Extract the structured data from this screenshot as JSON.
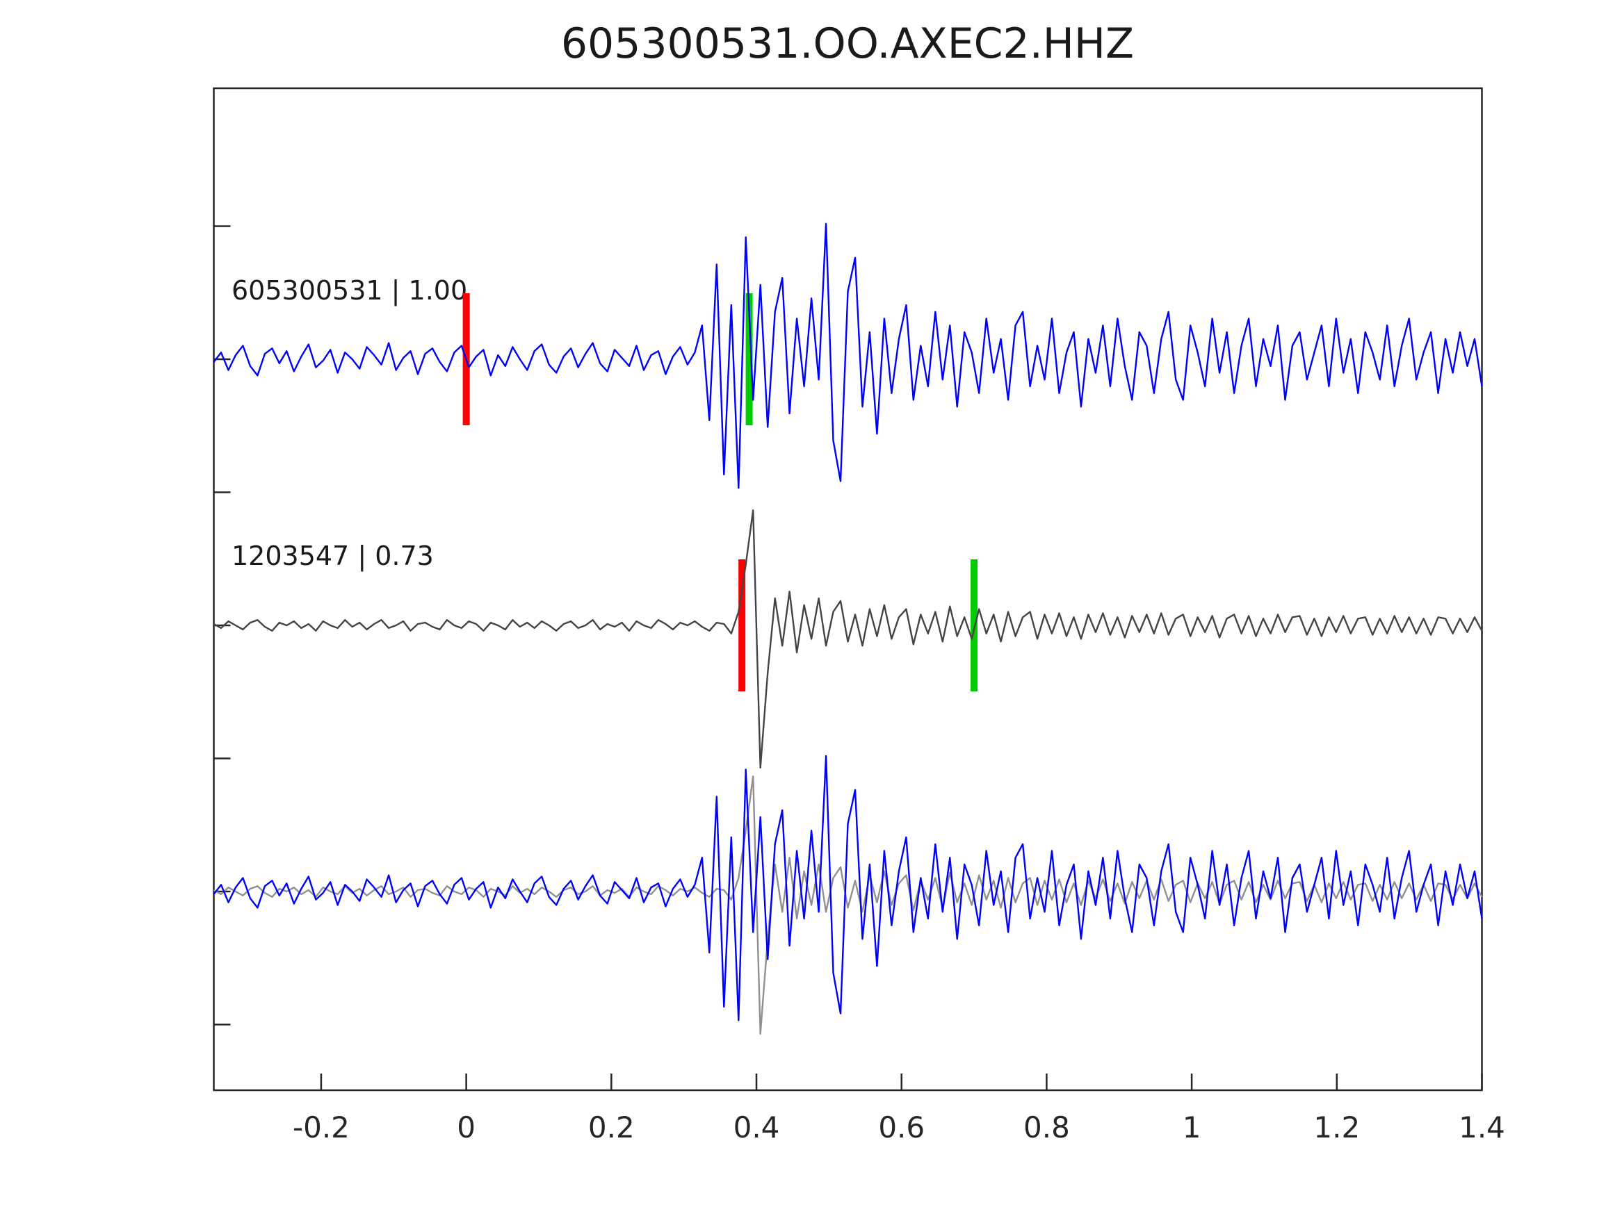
{
  "chart_data": {
    "type": "line",
    "title": "605300531.OO.AXEC2.HHZ",
    "xlabel": "",
    "ylabel": "",
    "legend": "none",
    "grid": false,
    "x_range": [
      -0.348,
      1.4
    ],
    "x_ticks": [
      -0.2,
      0,
      0.2,
      0.4,
      0.6,
      0.8,
      1,
      1.2,
      1.4
    ],
    "x_tick_labels": [
      "-0.2",
      "0",
      "0.2",
      "0.4",
      "0.6",
      "0.8",
      "1",
      "1.2",
      "1.4"
    ],
    "colors": {
      "template": "#0000ff",
      "detection": "#444444",
      "overlay_detection": "#909090",
      "pick_red": "#ff0000",
      "pick_green": "#00cc00",
      "axis": "#262626"
    },
    "rows": [
      {
        "name": "template-trace",
        "label": "605300531 | 1.00",
        "series": [
          "template"
        ],
        "color_keys": [
          "template"
        ],
        "markers": [
          {
            "x": 0.0,
            "color_key": "pick_red"
          },
          {
            "x": 0.39,
            "color_key": "pick_green"
          }
        ]
      },
      {
        "name": "detection-trace",
        "label": "1203547 | 0.73",
        "series": [
          "detection"
        ],
        "color_keys": [
          "detection"
        ],
        "markers": [
          {
            "x": 0.38,
            "color_key": "pick_red"
          },
          {
            "x": 0.7,
            "color_key": "pick_green"
          }
        ]
      },
      {
        "name": "overlay-trace",
        "label": "",
        "series": [
          "detection",
          "template"
        ],
        "color_keys": [
          "overlay_detection",
          "template"
        ],
        "markers": []
      }
    ],
    "series": {
      "template": [
        -0.02,
        0.05,
        -0.08,
        0.03,
        0.1,
        -0.05,
        -0.12,
        0.04,
        0.08,
        -0.03,
        0.06,
        -0.09,
        0.02,
        0.11,
        -0.06,
        -0.01,
        0.07,
        -0.1,
        0.05,
        0.0,
        -0.07,
        0.09,
        0.03,
        -0.04,
        0.12,
        -0.08,
        0.01,
        0.06,
        -0.11,
        0.04,
        0.08,
        -0.02,
        -0.09,
        0.05,
        0.1,
        -0.06,
        0.02,
        0.07,
        -0.12,
        0.03,
        -0.05,
        0.09,
        0.0,
        -0.08,
        0.06,
        0.11,
        -0.04,
        -0.1,
        0.02,
        0.08,
        -0.06,
        0.04,
        0.12,
        -0.03,
        -0.09,
        0.07,
        0.01,
        -0.05,
        0.1,
        -0.08,
        0.03,
        0.06,
        -0.11,
        0.02,
        0.09,
        -0.04,
        0.05,
        0.25,
        -0.45,
        0.7,
        -0.85,
        0.4,
        -0.95,
        0.9,
        -0.3,
        0.55,
        -0.5,
        0.35,
        0.6,
        -0.4,
        0.3,
        -0.2,
        0.45,
        -0.15,
        1.0,
        -0.6,
        -0.9,
        0.5,
        0.75,
        -0.35,
        0.2,
        -0.55,
        0.3,
        -0.25,
        0.15,
        0.4,
        -0.3,
        0.1,
        -0.2,
        0.35,
        -0.15,
        0.25,
        -0.35,
        0.2,
        0.05,
        -0.25,
        0.3,
        -0.1,
        0.15,
        -0.3,
        0.25,
        0.35,
        -0.2,
        0.1,
        -0.15,
        0.3,
        -0.25,
        0.05,
        0.2,
        -0.35,
        0.15,
        -0.1,
        0.25,
        -0.2,
        0.3,
        -0.05,
        -0.3,
        0.2,
        0.1,
        -0.25,
        0.15,
        0.35,
        -0.15,
        -0.3,
        0.25,
        0.05,
        -0.2,
        0.3,
        -0.1,
        0.2,
        -0.25,
        0.1,
        0.3,
        -0.2,
        0.15,
        -0.05,
        0.25,
        -0.3,
        0.1,
        0.2,
        -0.15,
        0.05,
        0.25,
        -0.2,
        0.3,
        -0.1,
        0.15,
        -0.25,
        0.2,
        0.05,
        -0.15,
        0.25,
        -0.2,
        0.1,
        0.3,
        -0.15,
        0.05,
        0.2,
        -0.25,
        0.15,
        -0.1,
        0.2,
        -0.05,
        0.15,
        -0.2
      ],
      "detection": [
        0.01,
        -0.02,
        0.03,
        0.0,
        -0.03,
        0.02,
        0.04,
        -0.01,
        -0.04,
        0.02,
        0.0,
        0.03,
        -0.02,
        0.01,
        -0.04,
        0.03,
        0.0,
        -0.02,
        0.04,
        -0.01,
        0.02,
        -0.03,
        0.01,
        0.04,
        -0.02,
        0.0,
        0.03,
        -0.04,
        0.01,
        0.02,
        -0.01,
        -0.03,
        0.04,
        0.0,
        -0.02,
        0.03,
        0.01,
        -0.04,
        0.02,
        0.0,
        -0.03,
        0.04,
        -0.01,
        0.02,
        -0.02,
        0.03,
        0.0,
        -0.04,
        0.01,
        0.03,
        -0.02,
        0.0,
        0.04,
        -0.03,
        0.01,
        -0.01,
        0.02,
        -0.04,
        0.03,
        0.0,
        -0.02,
        0.04,
        0.01,
        -0.03,
        0.02,
        0.0,
        0.03,
        -0.01,
        -0.04,
        0.02,
        0.01,
        -0.06,
        0.1,
        0.45,
        0.85,
        -1.05,
        -0.35,
        0.2,
        -0.15,
        0.25,
        -0.2,
        0.15,
        -0.1,
        0.2,
        -0.15,
        0.1,
        0.18,
        -0.12,
        0.08,
        -0.15,
        0.12,
        -0.08,
        0.15,
        -0.1,
        0.06,
        0.12,
        -0.14,
        0.08,
        -0.06,
        0.1,
        -0.12,
        0.14,
        -0.08,
        0.06,
        -0.1,
        0.12,
        -0.06,
        0.08,
        -0.12,
        0.1,
        -0.08,
        0.06,
        0.1,
        -0.1,
        0.08,
        -0.06,
        0.09,
        -0.08,
        0.06,
        -0.1,
        0.08,
        -0.05,
        0.09,
        -0.07,
        0.06,
        -0.09,
        0.07,
        -0.05,
        0.08,
        -0.06,
        0.09,
        -0.07,
        0.05,
        0.08,
        -0.08,
        0.06,
        -0.05,
        0.07,
        -0.09,
        0.05,
        0.08,
        -0.06,
        0.07,
        -0.08,
        0.05,
        -0.06,
        0.08,
        -0.05,
        0.06,
        0.07,
        -0.07,
        0.05,
        -0.08,
        0.06,
        -0.05,
        0.07,
        -0.06,
        0.05,
        0.06,
        -0.07,
        0.05,
        -0.06,
        0.07,
        -0.05,
        0.06,
        -0.06,
        0.05,
        -0.07,
        0.06,
        0.05,
        -0.06,
        0.05,
        -0.05,
        0.06,
        -0.04
      ]
    }
  }
}
